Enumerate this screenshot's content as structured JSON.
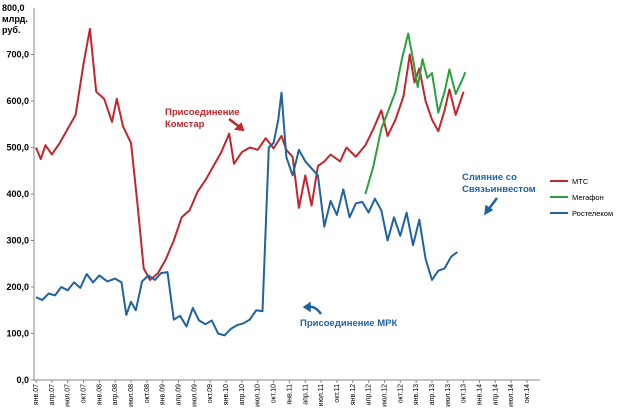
{
  "chart_data": {
    "type": "line",
    "y_unit_lines": [
      "800,0",
      "млрд.",
      "руб."
    ],
    "ylim": [
      0,
      800
    ],
    "y_ticks": [
      {
        "v": 0,
        "label": "0,0"
      },
      {
        "v": 100,
        "label": "100,0"
      },
      {
        "v": 200,
        "label": "200,0"
      },
      {
        "v": 300,
        "label": "300,0"
      },
      {
        "v": 400,
        "label": "400,0"
      },
      {
        "v": 500,
        "label": "500,0"
      },
      {
        "v": 600,
        "label": "600,0"
      },
      {
        "v": 700,
        "label": "700,0"
      }
    ],
    "x_range": [
      0,
      31
    ],
    "x_ticks": [
      "янв.07",
      "апр.07",
      "июл.07",
      "окт.07",
      "янв.08",
      "апр.08",
      "июл.08",
      "окт.08",
      "янв.09",
      "апр.09",
      "июл.09",
      "окт.09",
      "янв.10",
      "апр.10",
      "июл.10",
      "окт.10",
      "янв.11",
      "апр.11",
      "июл.11",
      "окт.11",
      "янв.12",
      "апр.12",
      "июл.12",
      "окт.12",
      "янв.13",
      "апр.13",
      "июл.13",
      "окт.13",
      "янв.14",
      "апр.14",
      "июл.14",
      "окт.14"
    ],
    "grid": false,
    "legend_position": "right",
    "series": [
      {
        "name": "МТС",
        "color": "#c0272d",
        "points": [
          [
            0,
            500
          ],
          [
            0.3,
            475
          ],
          [
            0.6,
            505
          ],
          [
            1,
            485
          ],
          [
            1.5,
            510
          ],
          [
            2,
            540
          ],
          [
            2.5,
            570
          ],
          [
            3,
            680
          ],
          [
            3.4,
            755
          ],
          [
            3.8,
            620
          ],
          [
            4.3,
            605
          ],
          [
            4.8,
            555
          ],
          [
            5.1,
            605
          ],
          [
            5.5,
            545
          ],
          [
            6,
            510
          ],
          [
            6.4,
            380
          ],
          [
            6.8,
            240
          ],
          [
            7.2,
            215
          ],
          [
            7.7,
            230
          ],
          [
            8.2,
            260
          ],
          [
            8.7,
            300
          ],
          [
            9.2,
            350
          ],
          [
            9.7,
            365
          ],
          [
            10.2,
            405
          ],
          [
            10.7,
            430
          ],
          [
            11.2,
            460
          ],
          [
            11.7,
            490
          ],
          [
            12.2,
            530
          ],
          [
            12.5,
            465
          ],
          [
            13,
            490
          ],
          [
            13.5,
            500
          ],
          [
            14,
            495
          ],
          [
            14.5,
            520
          ],
          [
            15,
            498
          ],
          [
            15.5,
            525
          ],
          [
            15.8,
            495
          ],
          [
            16.2,
            480
          ],
          [
            16.6,
            370
          ],
          [
            17,
            440
          ],
          [
            17.4,
            375
          ],
          [
            17.8,
            460
          ],
          [
            18.2,
            470
          ],
          [
            18.6,
            485
          ],
          [
            19.2,
            470
          ],
          [
            19.6,
            500
          ],
          [
            20.2,
            480
          ],
          [
            20.8,
            505
          ],
          [
            21.3,
            540
          ],
          [
            21.8,
            580
          ],
          [
            22.2,
            525
          ],
          [
            22.7,
            560
          ],
          [
            23.2,
            610
          ],
          [
            23.6,
            700
          ],
          [
            23.9,
            640
          ],
          [
            24.2,
            670
          ],
          [
            24.6,
            600
          ],
          [
            25,
            560
          ],
          [
            25.4,
            535
          ],
          [
            25.8,
            580
          ],
          [
            26.1,
            625
          ],
          [
            26.5,
            570
          ],
          [
            27,
            620
          ]
        ]
      },
      {
        "name": "Мегафон",
        "color": "#2e9e3e",
        "points": [
          [
            20.8,
            400
          ],
          [
            21.3,
            460
          ],
          [
            21.8,
            540
          ],
          [
            22.2,
            575
          ],
          [
            22.7,
            620
          ],
          [
            23.1,
            690
          ],
          [
            23.5,
            745
          ],
          [
            23.8,
            690
          ],
          [
            24.1,
            630
          ],
          [
            24.4,
            690
          ],
          [
            24.7,
            650
          ],
          [
            25,
            660
          ],
          [
            25.4,
            575
          ],
          [
            25.8,
            620
          ],
          [
            26.1,
            668
          ],
          [
            26.5,
            615
          ],
          [
            26.9,
            645
          ],
          [
            27.1,
            662
          ]
        ]
      },
      {
        "name": "Ростелеком",
        "color": "#1f63a0",
        "points": [
          [
            0,
            178
          ],
          [
            0.4,
            172
          ],
          [
            0.8,
            186
          ],
          [
            1.2,
            182
          ],
          [
            1.6,
            200
          ],
          [
            2,
            193
          ],
          [
            2.4,
            210
          ],
          [
            2.8,
            198
          ],
          [
            3.2,
            228
          ],
          [
            3.6,
            210
          ],
          [
            4,
            225
          ],
          [
            4.5,
            212
          ],
          [
            5,
            218
          ],
          [
            5.4,
            210
          ],
          [
            5.7,
            140
          ],
          [
            6,
            168
          ],
          [
            6.3,
            150
          ],
          [
            6.7,
            212
          ],
          [
            7.1,
            225
          ],
          [
            7.5,
            215
          ],
          [
            7.9,
            230
          ],
          [
            8.3,
            232
          ],
          [
            8.7,
            130
          ],
          [
            9.1,
            138
          ],
          [
            9.5,
            115
          ],
          [
            9.9,
            155
          ],
          [
            10.3,
            128
          ],
          [
            10.7,
            120
          ],
          [
            11.1,
            128
          ],
          [
            11.5,
            100
          ],
          [
            11.9,
            96
          ],
          [
            12.3,
            110
          ],
          [
            12.7,
            118
          ],
          [
            13.1,
            122
          ],
          [
            13.5,
            130
          ],
          [
            13.9,
            150
          ],
          [
            14.3,
            148
          ],
          [
            14.7,
            500
          ],
          [
            15,
            510
          ],
          [
            15.3,
            560
          ],
          [
            15.5,
            618
          ],
          [
            15.8,
            480
          ],
          [
            16.2,
            440
          ],
          [
            16.6,
            495
          ],
          [
            17,
            470
          ],
          [
            17.4,
            455
          ],
          [
            17.8,
            440
          ],
          [
            18.2,
            330
          ],
          [
            18.6,
            385
          ],
          [
            19,
            355
          ],
          [
            19.4,
            410
          ],
          [
            19.8,
            350
          ],
          [
            20.2,
            380
          ],
          [
            20.6,
            383
          ],
          [
            21,
            360
          ],
          [
            21.4,
            390
          ],
          [
            21.8,
            365
          ],
          [
            22.2,
            300
          ],
          [
            22.6,
            350
          ],
          [
            23,
            310
          ],
          [
            23.4,
            360
          ],
          [
            23.8,
            290
          ],
          [
            24.2,
            345
          ],
          [
            24.6,
            260
          ],
          [
            25,
            215
          ],
          [
            25.4,
            235
          ],
          [
            25.8,
            240
          ],
          [
            26.2,
            265
          ],
          [
            26.6,
            275
          ]
        ]
      }
    ],
    "annotations": [
      {
        "text": "Присоединение\nКомстар",
        "color": "#c0272d"
      },
      {
        "text": "Присоединение МРК",
        "color": "#1f63a0"
      },
      {
        "text": "Слияние со\nСвязьинвестом",
        "color": "#1f63a0"
      }
    ]
  }
}
